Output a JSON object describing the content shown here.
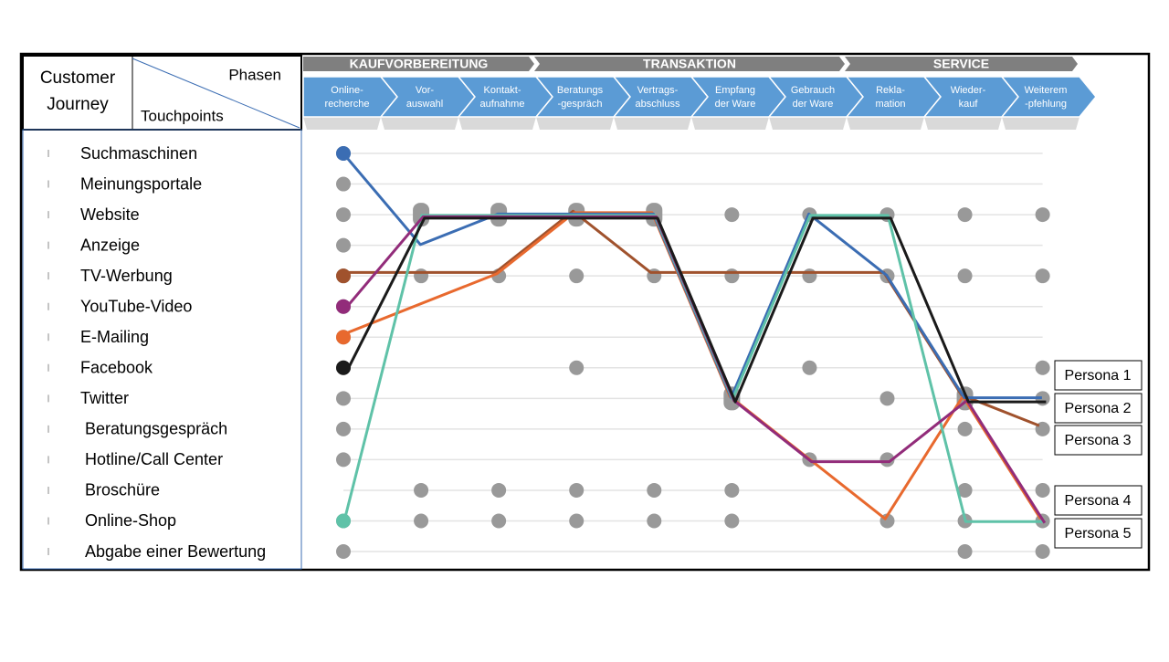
{
  "header": {
    "title_lines": [
      "Customer",
      "Journey"
    ],
    "phases_label": "Phasen",
    "touchpoints_label": "Touchpoints"
  },
  "phases": [
    "KAUFVORBEREITUNG",
    "TRANSAKTION",
    "SERVICE"
  ],
  "stages": [
    [
      "Online-",
      "recherche"
    ],
    [
      "Vor-",
      "auswahl"
    ],
    [
      "Kontakt-",
      "aufnahme"
    ],
    [
      "Beratungs",
      "-gespräch"
    ],
    [
      "Vertrags-",
      "abschluss"
    ],
    [
      "Empfang",
      "der Ware"
    ],
    [
      "Gebrauch",
      "der Ware"
    ],
    [
      "Rekla-",
      "mation"
    ],
    [
      "Wieder-",
      "kauf"
    ],
    [
      "Weiterem",
      "-pfehlung"
    ]
  ],
  "touchpoints": [
    "Suchmaschinen",
    "Meinungsportale",
    "Website",
    "Anzeige",
    "TV-Werbung",
    "YouTube-Video",
    "E-Mailing",
    "Facebook",
    "Twitter",
    "Beratungsgespräch",
    "Hotline/Call Center",
    "Broschüre",
    "Online-Shop",
    "Abgabe einer Bewertung"
  ],
  "personas": [
    "Persona 1",
    "Persona 2",
    "Persona 3",
    "Persona 4",
    "Persona 5"
  ],
  "journeys": [
    {
      "color": "#a0522d",
      "rows": [
        4,
        4,
        4,
        2,
        4,
        4,
        4,
        4,
        8,
        9
      ]
    },
    {
      "color": "#e8692e",
      "rows": [
        6,
        null,
        4,
        2,
        2,
        8,
        10,
        12,
        8,
        12
      ]
    },
    {
      "color": "#3b6db3",
      "rows": [
        0,
        3,
        2,
        2,
        2,
        8,
        2,
        4,
        8,
        8
      ]
    },
    {
      "color": "#5fc2a8",
      "rows": [
        12,
        2,
        2,
        2,
        2,
        8,
        2,
        2,
        12,
        12
      ]
    },
    {
      "color": "#922c7a",
      "rows": [
        5,
        2,
        2,
        2,
        2,
        8,
        10,
        10,
        8,
        12
      ]
    },
    {
      "color": "#1a1a1a",
      "rows": [
        7,
        2,
        2,
        2,
        2,
        8,
        2,
        2,
        8,
        8
      ]
    }
  ],
  "touchpoint_dots": [
    [
      0
    ],
    [
      0
    ],
    [
      0,
      1,
      2,
      3,
      4,
      5,
      6,
      7,
      8,
      9
    ],
    [
      0
    ],
    [
      0,
      1,
      2,
      3,
      4,
      5,
      6,
      7,
      8,
      9
    ],
    [
      0
    ],
    [
      0
    ],
    [
      0,
      3,
      6,
      9
    ],
    [
      0,
      5,
      7,
      8,
      9
    ],
    [
      0,
      8,
      9
    ],
    [
      0,
      6,
      7
    ],
    [
      1,
      2,
      3,
      4,
      5,
      8,
      9
    ],
    [
      0,
      1,
      2,
      3,
      4,
      5,
      7,
      8,
      9
    ],
    [
      0,
      8,
      9
    ]
  ]
}
